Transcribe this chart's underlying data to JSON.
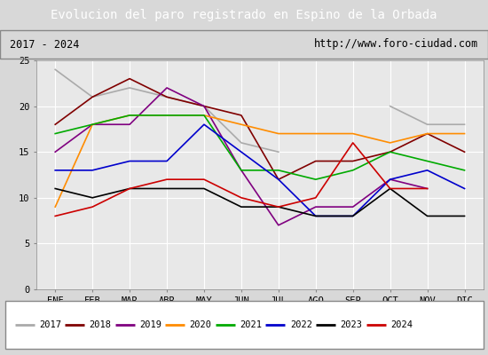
{
  "title": "Evolucion del paro registrado en Espino de la Orbada",
  "subtitle_left": "2017 - 2024",
  "subtitle_right": "http://www.foro-ciudad.com",
  "months": [
    "ENE",
    "FEB",
    "MAR",
    "ABR",
    "MAY",
    "JUN",
    "JUL",
    "AGO",
    "SEP",
    "OCT",
    "NOV",
    "DIC"
  ],
  "series": {
    "2017": {
      "color": "#aaaaaa",
      "data": [
        24,
        21,
        22,
        21,
        20,
        16,
        15,
        null,
        null,
        20,
        18,
        18
      ]
    },
    "2018": {
      "color": "#800000",
      "data": [
        18,
        21,
        23,
        21,
        20,
        19,
        12,
        14,
        14,
        15,
        17,
        15
      ]
    },
    "2019": {
      "color": "#800080",
      "data": [
        15,
        18,
        18,
        22,
        20,
        13,
        7,
        9,
        9,
        12,
        11,
        null
      ]
    },
    "2020": {
      "color": "#ff8c00",
      "data": [
        9,
        18,
        19,
        19,
        19,
        18,
        17,
        17,
        17,
        16,
        17,
        17
      ]
    },
    "2021": {
      "color": "#00aa00",
      "data": [
        17,
        18,
        19,
        19,
        19,
        13,
        13,
        12,
        13,
        15,
        14,
        13
      ]
    },
    "2022": {
      "color": "#0000cc",
      "data": [
        13,
        13,
        14,
        14,
        18,
        15,
        12,
        8,
        8,
        12,
        13,
        11
      ]
    },
    "2023": {
      "color": "#000000",
      "data": [
        11,
        10,
        11,
        11,
        11,
        9,
        9,
        8,
        8,
        11,
        8,
        8
      ]
    },
    "2024": {
      "color": "#cc0000",
      "data": [
        8,
        9,
        11,
        12,
        12,
        10,
        9,
        10,
        16,
        11,
        11,
        null
      ]
    }
  },
  "ylim": [
    0,
    25
  ],
  "yticks": [
    0,
    5,
    10,
    15,
    20,
    25
  ],
  "bg_color": "#d8d8d8",
  "plot_bg_color": "#e8e8e8",
  "title_bg_color": "#4472c4",
  "title_color": "#ffffff",
  "header_bg_color": "#ffffff",
  "legend_bg_color": "#ffffff"
}
